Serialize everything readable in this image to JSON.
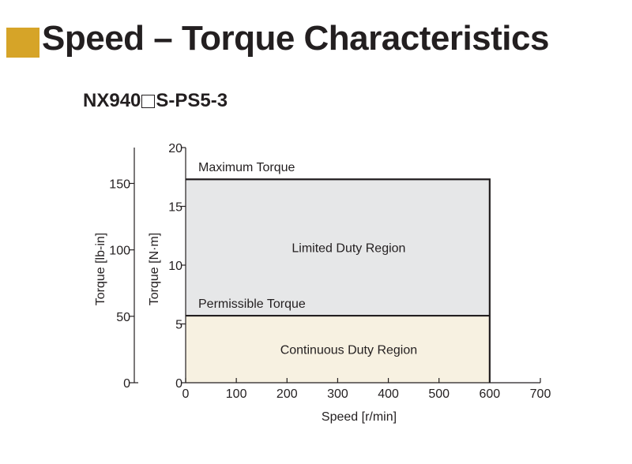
{
  "header": {
    "title": "Speed – Torque Characteristics",
    "accent_color": "#d6a428"
  },
  "model": {
    "prefix": "NX940",
    "suffix": "S-PS5-3",
    "placeholder_symbol": "square-box"
  },
  "chart_data": {
    "type": "area",
    "xlabel": "Speed [r/min]",
    "ylabel_primary": "Torque [N·m]",
    "ylabel_secondary": "Torque [lb-in]",
    "xlim": [
      0,
      700
    ],
    "ylim": [
      0,
      20
    ],
    "ylim_secondary": [
      0,
      177
    ],
    "x_ticks": [
      0,
      100,
      200,
      300,
      400,
      500,
      600,
      700
    ],
    "y_ticks": [
      0,
      5,
      10,
      15,
      20
    ],
    "y_ticks_secondary": [
      0,
      50,
      100,
      150
    ],
    "grid": false,
    "series": [
      {
        "name": "Maximum Torque",
        "x": [
          0,
          600,
          600
        ],
        "y": [
          17.3,
          17.3,
          0
        ]
      },
      {
        "name": "Permissible Torque",
        "x": [
          0,
          600
        ],
        "y": [
          5.7,
          5.7
        ]
      }
    ],
    "regions": [
      {
        "label": "Limited Duty Region",
        "x_range": [
          0,
          600
        ],
        "y_range": [
          5.7,
          17.3
        ],
        "color": "#e6e7e8"
      },
      {
        "label": "Continuous Duty Region",
        "x_range": [
          0,
          600
        ],
        "y_range": [
          0,
          5.7
        ],
        "color": "#f7f1e1"
      }
    ]
  }
}
